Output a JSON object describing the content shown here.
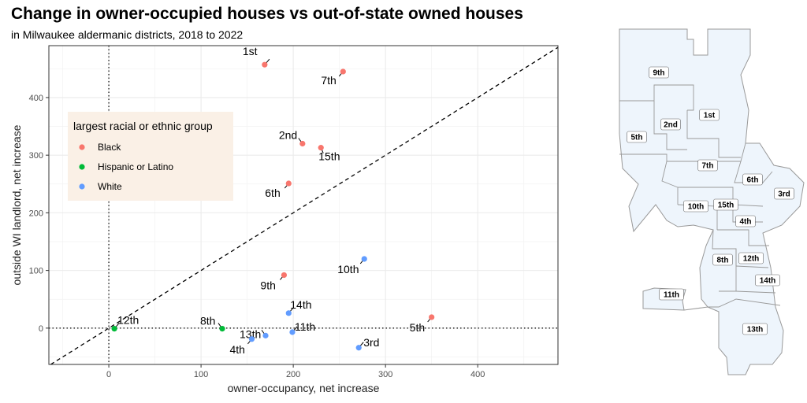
{
  "header": {
    "title": "Change in owner-occupied houses vs out-of-state owned houses",
    "subtitle": "in Milwaukee aldermanic districts, 2018 to 2022"
  },
  "chart_data": {
    "type": "scatter",
    "xlabel": "owner-occupancy, net increase",
    "ylabel": "outside WI landlord, net increase",
    "xlim": [
      -65,
      487
    ],
    "ylim": [
      -63,
      490
    ],
    "xticks": [
      0,
      100,
      200,
      300,
      400
    ],
    "yticks": [
      0,
      100,
      200,
      300,
      400
    ],
    "grid": true,
    "reference_lines": [
      "x = 0",
      "y = 0",
      "y = x"
    ],
    "legend": {
      "title": "largest racial or ethnic group",
      "placement": "upper-left inside plot",
      "entries": [
        {
          "name": "Black",
          "color": "#F8766D"
        },
        {
          "name": "Hispanic or Latino",
          "color": "#00BA38"
        },
        {
          "name": "White",
          "color": "#619CFF"
        }
      ]
    },
    "points": [
      {
        "label": "1st",
        "x": 169,
        "y": 457,
        "group": "Black"
      },
      {
        "label": "7th",
        "x": 254,
        "y": 445,
        "group": "Black"
      },
      {
        "label": "2nd",
        "x": 210,
        "y": 320,
        "group": "Black"
      },
      {
        "label": "15th",
        "x": 230,
        "y": 313,
        "group": "Black"
      },
      {
        "label": "6th",
        "x": 195,
        "y": 251,
        "group": "Black"
      },
      {
        "label": "9th",
        "x": 190,
        "y": 92,
        "group": "Black"
      },
      {
        "label": "5th",
        "x": 350,
        "y": 19,
        "group": "Black"
      },
      {
        "label": "12th",
        "x": 6,
        "y": -1,
        "group": "Hispanic or Latino"
      },
      {
        "label": "8th",
        "x": 123,
        "y": -1,
        "group": "Hispanic or Latino"
      },
      {
        "label": "10th",
        "x": 277,
        "y": 120,
        "group": "White"
      },
      {
        "label": "14th",
        "x": 195,
        "y": 26,
        "group": "White"
      },
      {
        "label": "11th",
        "x": 199,
        "y": -7,
        "group": "White"
      },
      {
        "label": "13th",
        "x": 170,
        "y": -13,
        "group": "White"
      },
      {
        "label": "4th",
        "x": 155,
        "y": -19,
        "group": "White"
      },
      {
        "label": "3rd",
        "x": 271,
        "y": -34,
        "group": "White"
      }
    ]
  },
  "map": {
    "fill": "#EEF5FC",
    "stroke": "#999999",
    "district_labels": [
      "9th",
      "1st",
      "2nd",
      "5th",
      "7th",
      "6th",
      "3rd",
      "10th",
      "15th",
      "4th",
      "8th",
      "12th",
      "14th",
      "11th",
      "13th"
    ]
  }
}
